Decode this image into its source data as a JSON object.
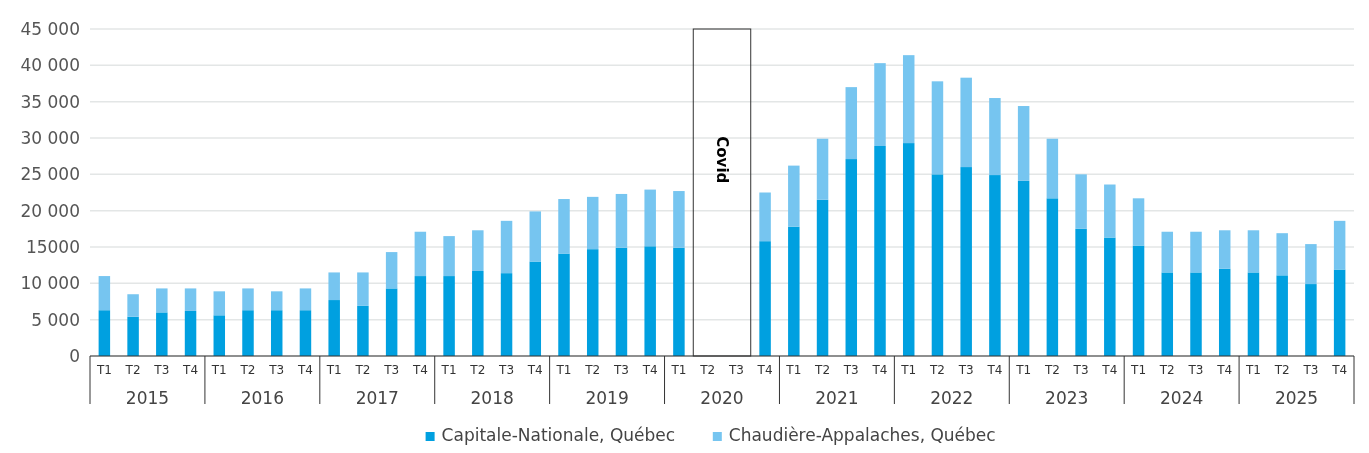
{
  "chart_data": {
    "type": "bar",
    "stacked": true,
    "categories": [
      "T1",
      "T2",
      "T3",
      "T4",
      "T1",
      "T2",
      "T3",
      "T4",
      "T1",
      "T2",
      "T3",
      "T4",
      "T1",
      "T2",
      "T3",
      "T4",
      "T1",
      "T2",
      "T3",
      "T4",
      "T1",
      "T2",
      "T3",
      "T4",
      "T1",
      "T2",
      "T3",
      "T4",
      "T1",
      "T2",
      "T3",
      "T4",
      "T1",
      "T2",
      "T3",
      "T4",
      "T1",
      "T2",
      "T3",
      "T4",
      "T1",
      "T2",
      "T3",
      "T4"
    ],
    "annotations": [
      "Covid",
      "2015",
      "2016",
      "2017",
      "2018",
      "2019",
      "2020",
      "2021",
      "2022",
      "2023",
      "2024",
      "2025"
    ],
    "series": [
      {
        "name": "Capitale-Nationale, Québec",
        "color": "#00a0e0",
        "values": [
          6300,
          5400,
          6000,
          6200,
          5600,
          6300,
          6300,
          6300,
          7700,
          6900,
          9300,
          11000,
          11000,
          11700,
          11400,
          13000,
          14100,
          14700,
          14900,
          15100,
          14900,
          null,
          null,
          15800,
          17800,
          21500,
          27100,
          28900,
          29300,
          25000,
          26000,
          24900,
          24100,
          21700,
          17500,
          16300,
          15200,
          11500,
          11500,
          12000,
          11500,
          11100,
          9900,
          11900
        ]
      },
      {
        "name": "Chaudière-Appalaches, Québec",
        "color": "#76c5f0",
        "values": [
          4700,
          3100,
          3300,
          3100,
          3300,
          3000,
          2600,
          3000,
          3800,
          4600,
          5000,
          6100,
          5500,
          5600,
          7200,
          6900,
          7500,
          7200,
          7400,
          7800,
          7800,
          null,
          null,
          6700,
          8400,
          8400,
          9900,
          11400,
          12100,
          12800,
          12300,
          10600,
          10300,
          8200,
          7500,
          7300,
          6500,
          5600,
          5600,
          5300,
          5800,
          5800,
          5500,
          6700
        ]
      }
    ],
    "ylim": [
      0,
      45000
    ],
    "yticks": [
      {
        "value": 0,
        "label": "0"
      },
      {
        "value": 5000,
        "label": "5 000"
      },
      {
        "value": 10000,
        "label": "10 000"
      },
      {
        "value": 15000,
        "label": "15000"
      },
      {
        "value": 20000,
        "label": "20 000"
      },
      {
        "value": 25000,
        "label": "25 000"
      },
      {
        "value": 30000,
        "label": "30 000"
      },
      {
        "value": 35000,
        "label": "35 000"
      },
      {
        "value": 40000,
        "label": "40 000"
      },
      {
        "value": 45000,
        "label": "45 000"
      }
    ],
    "grid": "y",
    "legend": "bottom"
  }
}
